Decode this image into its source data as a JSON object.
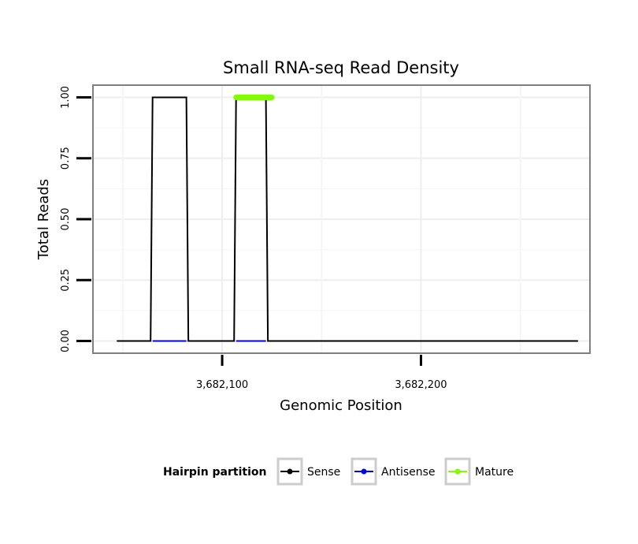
{
  "chart_data": {
    "type": "line",
    "title": "Small RNA-seq Read Density",
    "xlabel": "Genomic Position",
    "ylabel": "Total Reads",
    "xlim": [
      3682035,
      3682285
    ],
    "ylim": [
      -0.05,
      1.05
    ],
    "x_ticks": [
      3682100,
      3682200
    ],
    "x_tick_labels": [
      "3,682,100",
      "3,682,200"
    ],
    "y_ticks": [
      0,
      0.25,
      0.5,
      0.75,
      1.0
    ],
    "y_tick_labels": [
      "0.00",
      "0.25",
      "0.50",
      "0.75",
      "1.00"
    ],
    "grid": true,
    "legend": {
      "title": "Hairpin partition",
      "position": "bottom"
    },
    "series": [
      {
        "name": "Sense",
        "color": "#000000",
        "x": [
          3682047,
          3682064,
          3682065,
          3682082,
          3682083,
          3682106,
          3682107,
          3682122,
          3682123,
          3682279
        ],
        "values": [
          0,
          0,
          1,
          1,
          0,
          0,
          1,
          1,
          0,
          0
        ]
      },
      {
        "name": "Antisense",
        "color": "#0000ff",
        "x": [
          3682065,
          3682082,
          3682107,
          3682122
        ],
        "values": [
          0,
          0,
          0,
          0
        ],
        "segments": [
          [
            0,
            1
          ],
          [
            2,
            3
          ]
        ]
      },
      {
        "name": "Mature",
        "color": "#7fff00",
        "x": [
          3682107,
          3682125
        ],
        "values": [
          1,
          1
        ]
      }
    ]
  }
}
